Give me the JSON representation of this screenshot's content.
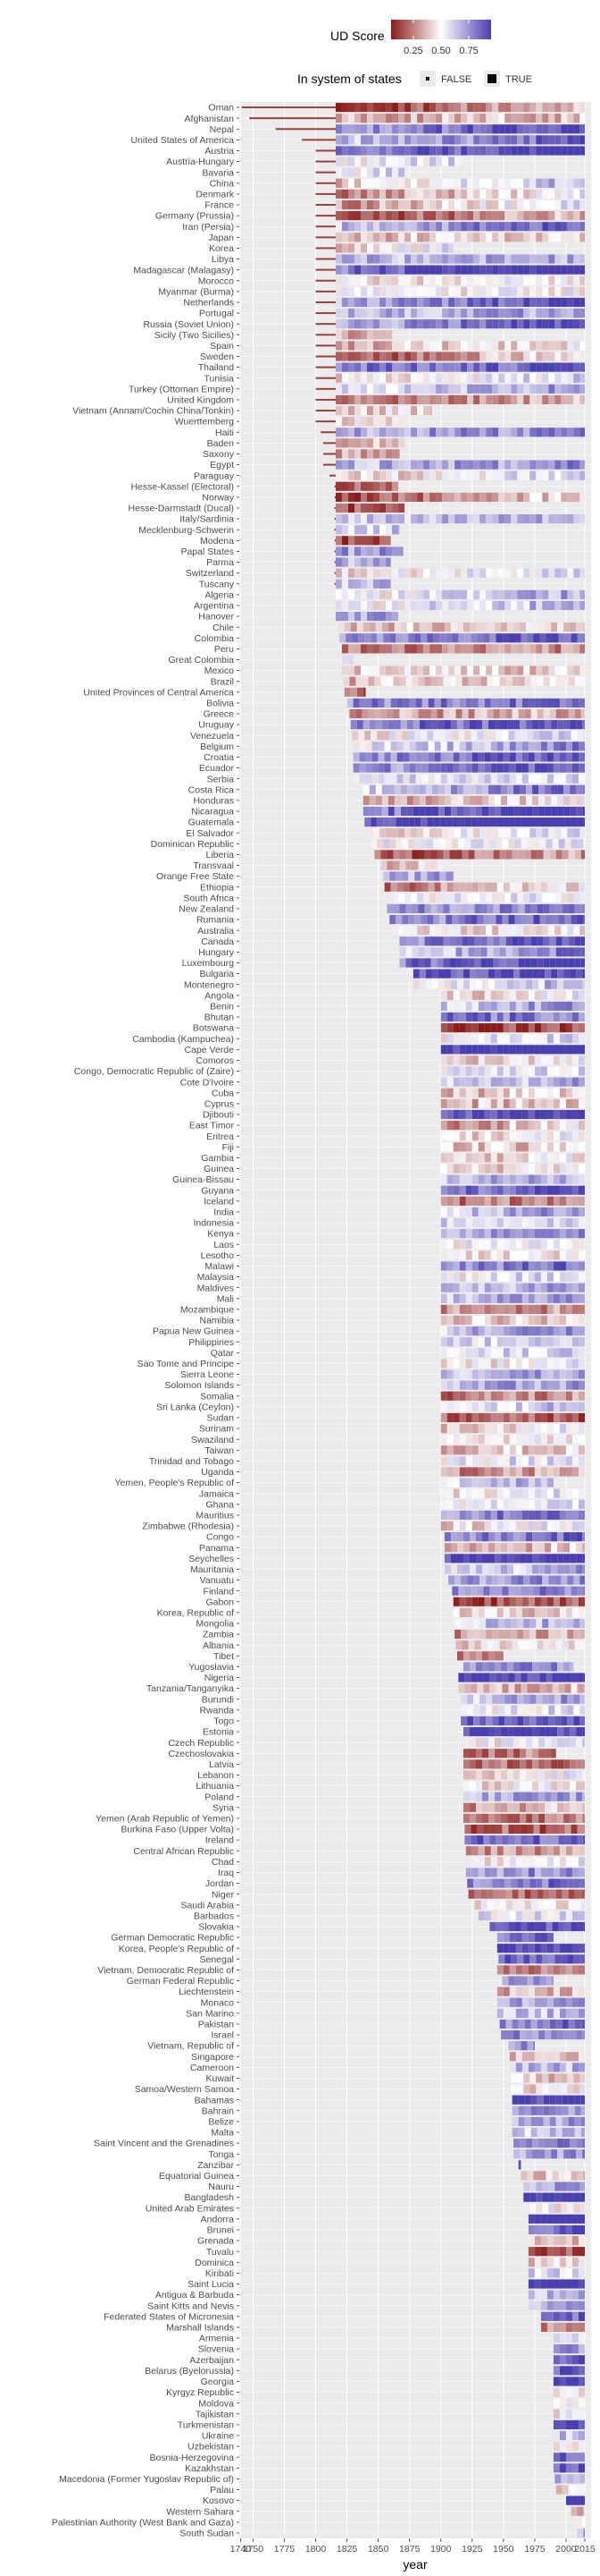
{
  "chart_data": {
    "type": "heatmap",
    "xlabel": "year",
    "ylabel": "",
    "xlim": [
      1739,
      2020
    ],
    "x_ticks": [
      1740,
      1750,
      1775,
      1800,
      1825,
      1850,
      1875,
      1900,
      1925,
      1950,
      1975,
      2000,
      2015
    ],
    "grid": true,
    "legend_position": "top",
    "color_legend": {
      "title": "UD Score",
      "ticks": [
        0.25,
        0.5,
        0.75
      ],
      "tick_labels": [
        "0.25",
        "0.50",
        "0.75"
      ],
      "low_color": "#8b1a1a",
      "mid_color": "#ffffff",
      "high_color": "#4a3fb0"
    },
    "size_legend": {
      "title": "In system of states",
      "entries": [
        {
          "label": "FALSE",
          "thickness": "thin"
        },
        {
          "label": "TRUE",
          "thickness": "thick"
        }
      ]
    },
    "countries": [
      [
        "Oman",
        1741,
        2015
      ],
      [
        "Afghanistan",
        1747,
        2015
      ],
      [
        "Nepal",
        1768,
        2015
      ],
      [
        "United States of America",
        1789,
        2015
      ],
      [
        "Austria",
        1800,
        2015
      ],
      [
        "Austria-Hungary",
        1800,
        1918
      ],
      [
        "Bavaria",
        1800,
        1871
      ],
      [
        "China",
        1800,
        2015
      ],
      [
        "Denmark",
        1800,
        2015
      ],
      [
        "France",
        1800,
        2015
      ],
      [
        "Germany (Prussia)",
        1800,
        2015
      ],
      [
        "Iran (Persia)",
        1800,
        2015
      ],
      [
        "Japan",
        1800,
        2015
      ],
      [
        "Korea",
        1800,
        1910
      ],
      [
        "Libya",
        1800,
        2015
      ],
      [
        "Madagascar (Malagasy)",
        1800,
        2015
      ],
      [
        "Morocco",
        1800,
        2015
      ],
      [
        "Myanmar (Burma)",
        1800,
        2015
      ],
      [
        "Netherlands",
        1800,
        2015
      ],
      [
        "Portugal",
        1800,
        2015
      ],
      [
        "Russia (Soviet Union)",
        1800,
        2015
      ],
      [
        "Sicily (Two Sicilies)",
        1800,
        1861
      ],
      [
        "Spain",
        1800,
        2015
      ],
      [
        "Sweden",
        1800,
        2015
      ],
      [
        "Thailand",
        1800,
        2015
      ],
      [
        "Tunisia",
        1800,
        2015
      ],
      [
        "Turkey (Ottoman Empire)",
        1800,
        2015
      ],
      [
        "United Kingdom",
        1800,
        2015
      ],
      [
        "Vietnam (Annam/Cochin China/Tonkin)",
        1800,
        1893
      ],
      [
        "Wuerttemberg",
        1800,
        1871
      ],
      [
        "Haiti",
        1804,
        2015
      ],
      [
        "Baden",
        1806,
        1871
      ],
      [
        "Saxony",
        1806,
        1867
      ],
      [
        "Egypt",
        1806,
        2015
      ],
      [
        "Paraguay",
        1811,
        2015
      ],
      [
        "Hesse-Kassel (Electoral)",
        1815,
        1866
      ],
      [
        "Norway",
        1815,
        2015
      ],
      [
        "Hesse-Darmstadt (Ducal)",
        1815,
        1871
      ],
      [
        "Italy/Sardinia",
        1815,
        2015
      ],
      [
        "Mecklenburg-Schwerin",
        1815,
        1867
      ],
      [
        "Modena",
        1815,
        1860
      ],
      [
        "Papal States",
        1815,
        1870
      ],
      [
        "Parma",
        1815,
        1860
      ],
      [
        "Switzerland",
        1815,
        2015
      ],
      [
        "Tuscany",
        1815,
        1860
      ],
      [
        "Algeria",
        1816,
        2015
      ],
      [
        "Argentina",
        1816,
        2015
      ],
      [
        "Hanover",
        1816,
        1866
      ],
      [
        "Chile",
        1818,
        2015
      ],
      [
        "Colombia",
        1819,
        2015
      ],
      [
        "Peru",
        1821,
        2015
      ],
      [
        "Great Colombia",
        1821,
        1830
      ],
      [
        "Mexico",
        1821,
        2015
      ],
      [
        "Brazil",
        1822,
        2015
      ],
      [
        "United Provinces of Central America",
        1823,
        1840
      ],
      [
        "Bolivia",
        1825,
        2015
      ],
      [
        "Greece",
        1827,
        2015
      ],
      [
        "Uruguay",
        1828,
        2015
      ],
      [
        "Venezuela",
        1829,
        2015
      ],
      [
        "Belgium",
        1830,
        2015
      ],
      [
        "Croatia",
        1830,
        2015
      ],
      [
        "Ecuador",
        1830,
        2015
      ],
      [
        "Serbia",
        1830,
        2015
      ],
      [
        "Costa Rica",
        1838,
        2015
      ],
      [
        "Honduras",
        1838,
        2015
      ],
      [
        "Nicaragua",
        1838,
        2015
      ],
      [
        "Guatemala",
        1839,
        2015
      ],
      [
        "El Salvador",
        1841,
        2015
      ],
      [
        "Dominican Republic",
        1844,
        2015
      ],
      [
        "Liberia",
        1847,
        2015
      ],
      [
        "Transvaal",
        1852,
        1902
      ],
      [
        "Orange Free State",
        1854,
        1910
      ],
      [
        "Ethiopia",
        1855,
        2015
      ],
      [
        "South Africa",
        1856,
        2015
      ],
      [
        "New Zealand",
        1857,
        2015
      ],
      [
        "Rumania",
        1859,
        2015
      ],
      [
        "Australia",
        1861,
        2015
      ],
      [
        "Canada",
        1867,
        2015
      ],
      [
        "Hungary",
        1867,
        2015
      ],
      [
        "Luxembourg",
        1867,
        2015
      ],
      [
        "Bulgaria",
        1878,
        2015
      ],
      [
        "Montenegro",
        1878,
        2015
      ],
      [
        "Angola",
        1900,
        2015
      ],
      [
        "Benin",
        1900,
        2015
      ],
      [
        "Bhutan",
        1900,
        2015
      ],
      [
        "Botswana",
        1900,
        2015
      ],
      [
        "Cambodia (Kampuchea)",
        1900,
        2015
      ],
      [
        "Cape Verde",
        1900,
        2015
      ],
      [
        "Comoros",
        1900,
        2015
      ],
      [
        "Congo, Democratic Republic of (Zaire)",
        1900,
        2015
      ],
      [
        "Cote D'Ivoire",
        1900,
        2015
      ],
      [
        "Cuba",
        1900,
        2015
      ],
      [
        "Cyprus",
        1900,
        2015
      ],
      [
        "Djibouti",
        1900,
        2015
      ],
      [
        "East Timor",
        1900,
        2015
      ],
      [
        "Eritrea",
        1900,
        2015
      ],
      [
        "Fiji",
        1900,
        2015
      ],
      [
        "Gambia",
        1900,
        2015
      ],
      [
        "Guinea",
        1900,
        2015
      ],
      [
        "Guinea-Bissau",
        1900,
        2015
      ],
      [
        "Guyana",
        1900,
        2015
      ],
      [
        "Iceland",
        1900,
        2015
      ],
      [
        "India",
        1900,
        2015
      ],
      [
        "Indonesia",
        1900,
        2015
      ],
      [
        "Kenya",
        1900,
        2015
      ],
      [
        "Laos",
        1900,
        2015
      ],
      [
        "Lesotho",
        1900,
        2015
      ],
      [
        "Malawi",
        1900,
        2015
      ],
      [
        "Malaysia",
        1900,
        2015
      ],
      [
        "Maldives",
        1900,
        2015
      ],
      [
        "Mali",
        1900,
        2015
      ],
      [
        "Mozambique",
        1900,
        2015
      ],
      [
        "Namibia",
        1900,
        2015
      ],
      [
        "Papua New Guinea",
        1900,
        2015
      ],
      [
        "Philippines",
        1900,
        2015
      ],
      [
        "Qatar",
        1900,
        2015
      ],
      [
        "Sao Tome and Principe",
        1900,
        2015
      ],
      [
        "Sierra Leone",
        1900,
        2015
      ],
      [
        "Solomon Islands",
        1900,
        2015
      ],
      [
        "Somalia",
        1900,
        2015
      ],
      [
        "Sri Lanka (Ceylon)",
        1900,
        2015
      ],
      [
        "Sudan",
        1900,
        2015
      ],
      [
        "Surinam",
        1900,
        2015
      ],
      [
        "Swaziland",
        1900,
        2015
      ],
      [
        "Taiwan",
        1900,
        2015
      ],
      [
        "Trinidad and Tobago",
        1900,
        2015
      ],
      [
        "Uganda",
        1900,
        2015
      ],
      [
        "Yemen, People's Republic of",
        1900,
        1990
      ],
      [
        "Jamaica",
        1900,
        2015
      ],
      [
        "Ghana",
        1900,
        2015
      ],
      [
        "Mauritius",
        1900,
        2015
      ],
      [
        "Zimbabwe (Rhodesia)",
        1900,
        2015
      ],
      [
        "Congo",
        1903,
        2015
      ],
      [
        "Panama",
        1903,
        2015
      ],
      [
        "Seychelles",
        1903,
        2015
      ],
      [
        "Mauritania",
        1903,
        2015
      ],
      [
        "Vanuatu",
        1906,
        2015
      ],
      [
        "Finland",
        1909,
        2015
      ],
      [
        "Gabon",
        1910,
        2015
      ],
      [
        "Korea, Republic of",
        1910,
        2015
      ],
      [
        "Mongolia",
        1911,
        2015
      ],
      [
        "Zambia",
        1911,
        2015
      ],
      [
        "Albania",
        1912,
        2015
      ],
      [
        "Tibet",
        1913,
        1950
      ],
      [
        "Yugoslavia",
        1918,
        2006
      ],
      [
        "Nigeria",
        1914,
        2015
      ],
      [
        "Tanzania/Tanganyika",
        1914,
        2015
      ],
      [
        "Burundi",
        1916,
        2015
      ],
      [
        "Rwanda",
        1916,
        2015
      ],
      [
        "Togo",
        1916,
        2015
      ],
      [
        "Estonia",
        1918,
        2015
      ],
      [
        "Czech Republic",
        1918,
        2015
      ],
      [
        "Czechoslovakia",
        1918,
        1992
      ],
      [
        "Latvia",
        1918,
        2015
      ],
      [
        "Lebanon",
        1918,
        2015
      ],
      [
        "Lithuania",
        1918,
        2015
      ],
      [
        "Poland",
        1918,
        2015
      ],
      [
        "Syria",
        1918,
        2015
      ],
      [
        "Yemen (Arab Republic of Yemen)",
        1918,
        2015
      ],
      [
        "Burkina Faso (Upper Volta)",
        1919,
        2015
      ],
      [
        "Ireland",
        1919,
        2015
      ],
      [
        "Central African Republic",
        1920,
        2015
      ],
      [
        "Chad",
        1920,
        2015
      ],
      [
        "Iraq",
        1920,
        2015
      ],
      [
        "Jordan",
        1921,
        2015
      ],
      [
        "Niger",
        1922,
        2015
      ],
      [
        "Saudi Arabia",
        1927,
        2015
      ],
      [
        "Barbados",
        1930,
        2015
      ],
      [
        "Slovakia",
        1939,
        2015
      ],
      [
        "German Democratic Republic",
        1945,
        1990
      ],
      [
        "Korea, People's Republic of",
        1945,
        2015
      ],
      [
        "Senegal",
        1946,
        2015
      ],
      [
        "Vietnam, Democratic Republic of",
        1945,
        2015
      ],
      [
        "German Federal Republic",
        1949,
        1990
      ],
      [
        "Liechtenstein",
        1945,
        2015
      ],
      [
        "Monaco",
        1945,
        2015
      ],
      [
        "San Marino",
        1945,
        2015
      ],
      [
        "Pakistan",
        1947,
        2015
      ],
      [
        "Israel",
        1948,
        2015
      ],
      [
        "Vietnam, Republic of",
        1954,
        1975
      ],
      [
        "Singapore",
        1955,
        2015
      ],
      [
        "Cameroon",
        1955,
        2015
      ],
      [
        "Kuwait",
        1956,
        2015
      ],
      [
        "Samoa/Western Samoa",
        1956,
        2015
      ],
      [
        "Bahamas",
        1957,
        2015
      ],
      [
        "Bahrain",
        1957,
        2015
      ],
      [
        "Belize",
        1957,
        2015
      ],
      [
        "Malta",
        1957,
        2015
      ],
      [
        "Saint Vincent and the Grenadines",
        1958,
        2015
      ],
      [
        "Tonga",
        1958,
        2015
      ],
      [
        "Zanzibar",
        1962,
        1964
      ],
      [
        "Equatorial Guinea",
        1964,
        2015
      ],
      [
        "Nauru",
        1966,
        2015
      ],
      [
        "Bangladesh",
        1966,
        2015
      ],
      [
        "United Arab Emirates",
        1966,
        2015
      ],
      [
        "Andorra",
        1970,
        2015
      ],
      [
        "Brunei",
        1970,
        2015
      ],
      [
        "Grenada",
        1970,
        2015
      ],
      [
        "Tuvalu",
        1970,
        2015
      ],
      [
        "Dominica",
        1970,
        2015
      ],
      [
        "Kiribati",
        1970,
        2015
      ],
      [
        "Saint Lucia",
        1970,
        2015
      ],
      [
        "Antigua & Barbuda",
        1970,
        2015
      ],
      [
        "Saint Kitts and Nevis",
        1970,
        2015
      ],
      [
        "Federated States of Micronesia",
        1980,
        2015
      ],
      [
        "Marshall Islands",
        1980,
        2015
      ],
      [
        "Armenia",
        1990,
        2015
      ],
      [
        "Slovenia",
        1990,
        2015
      ],
      [
        "Azerbaijan",
        1990,
        2015
      ],
      [
        "Belarus (Byelorussia)",
        1990,
        2015
      ],
      [
        "Georgia",
        1990,
        2015
      ],
      [
        "Kyrgyz Republic",
        1990,
        2015
      ],
      [
        "Moldova",
        1990,
        2015
      ],
      [
        "Tajikistan",
        1990,
        2015
      ],
      [
        "Turkmenistan",
        1990,
        2015
      ],
      [
        "Ukraine",
        1990,
        2015
      ],
      [
        "Uzbekistan",
        1990,
        2015
      ],
      [
        "Bosnia-Herzegovina",
        1990,
        2015
      ],
      [
        "Kazakhstan",
        1990,
        2015
      ],
      [
        "Macedonia (Former Yugoslav Republic of)",
        1991,
        2015
      ],
      [
        "Palau",
        1992,
        2015
      ],
      [
        "Kosovo",
        2000,
        2015
      ],
      [
        "Western Sahara",
        2004,
        2015
      ],
      [
        "Palestinian Authority (West Bank and Gaza)",
        2008,
        2015
      ],
      [
        "South Sudan",
        2009,
        2015
      ]
    ]
  }
}
